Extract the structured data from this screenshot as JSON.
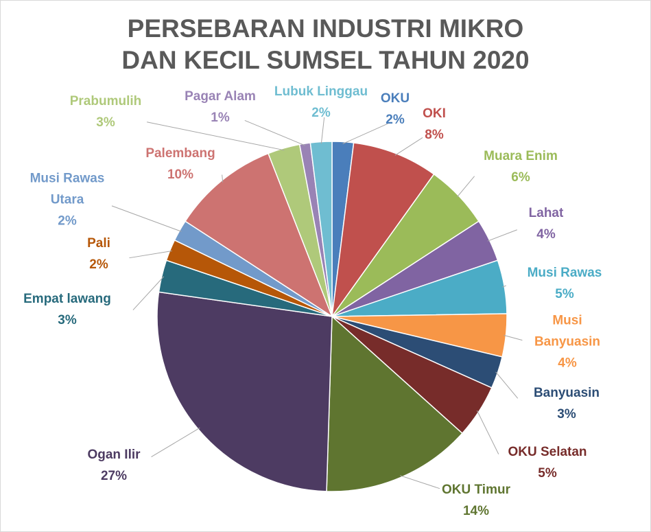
{
  "chart_data": {
    "type": "pie",
    "title": "PERSEBARAN INDUSTRI MIKRO DAN KECIL SUMSEL TAHUN 2020",
    "categories": [
      "OKU",
      "OKI",
      "Muara Enim",
      "Lahat",
      "Musi Rawas",
      "Musi Banyuasin",
      "Banyuasin",
      "OKU Selatan",
      "OKU Timur",
      "Ogan Ilir",
      "Empat lawang",
      "Pali",
      "Musi Rawas Utara",
      "Palembang",
      "Prabumulih",
      "Pagar Alam",
      "Lubuk Linggau"
    ],
    "values": [
      2,
      8,
      6,
      4,
      5,
      4,
      3,
      5,
      14,
      27,
      3,
      2,
      2,
      10,
      3,
      1,
      2
    ],
    "value_labels": [
      "2%",
      "8%",
      "6%",
      "4%",
      "5%",
      "4%",
      "3%",
      "5%",
      "14%",
      "27%",
      "3%",
      "2%",
      "2%",
      "10%",
      "3%",
      "1%",
      "2%"
    ],
    "colors": [
      "#4a7ebb",
      "#c0504d",
      "#9bbb59",
      "#8064a2",
      "#4bacc6",
      "#f79646",
      "#2c4d75",
      "#772c2a",
      "#5f7530",
      "#4d3b62",
      "#276a7c",
      "#b65708",
      "#729aca",
      "#cd7371",
      "#afc97a",
      "#9983b5",
      "#6fbdd1"
    ]
  }
}
